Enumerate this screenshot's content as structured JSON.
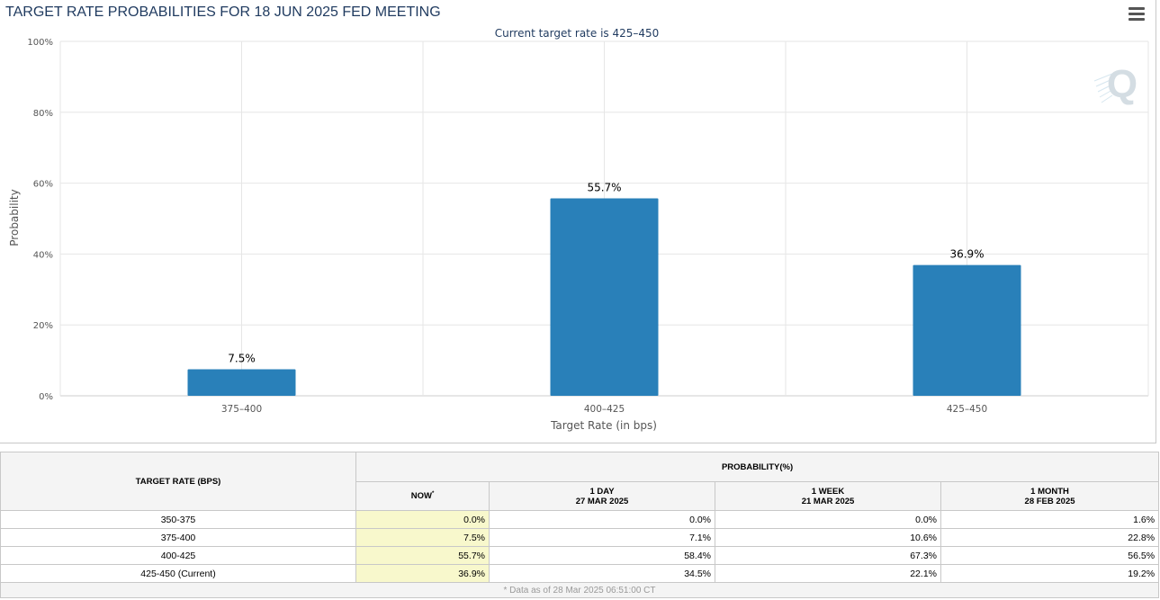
{
  "chart_data": {
    "type": "bar",
    "title": "TARGET RATE PROBABILITIES FOR 18 JUN 2025 FED MEETING",
    "subtitle": "Current target rate is 425–450",
    "xlabel": "Target Rate (in bps)",
    "ylabel": "Probability",
    "categories": [
      "375–400",
      "400–425",
      "425–450"
    ],
    "values": [
      7.5,
      55.7,
      36.9
    ],
    "data_labels": [
      "7.5%",
      "55.7%",
      "36.9%"
    ],
    "ylim": [
      0,
      100
    ],
    "yticks": [
      0,
      20,
      40,
      60,
      80,
      100
    ],
    "ytick_labels": [
      "0%",
      "20%",
      "40%",
      "60%",
      "80%",
      "100%"
    ],
    "bar_color": "#2980b9",
    "grid": true
  },
  "watermark": "Q",
  "table": {
    "rate_header": "TARGET RATE (BPS)",
    "prob_header": "PROBABILITY(%)",
    "now_header": "NOW",
    "now_mark": "*",
    "cols": [
      {
        "top": "1 DAY",
        "date": "27 MAR 2025"
      },
      {
        "top": "1 WEEK",
        "date": "21 MAR 2025"
      },
      {
        "top": "1 MONTH",
        "date": "28 FEB 2025"
      }
    ],
    "rows": [
      {
        "rate": "350-375",
        "now": "0.0%",
        "d1": "0.0%",
        "w1": "0.0%",
        "m1": "1.6%"
      },
      {
        "rate": "375-400",
        "now": "7.5%",
        "d1": "7.1%",
        "w1": "10.6%",
        "m1": "22.8%"
      },
      {
        "rate": "400-425",
        "now": "55.7%",
        "d1": "58.4%",
        "w1": "67.3%",
        "m1": "56.5%"
      },
      {
        "rate": "425-450 (Current)",
        "now": "36.9%",
        "d1": "34.5%",
        "w1": "22.1%",
        "m1": "19.2%"
      }
    ],
    "footer": "* Data as of 28 Mar 2025 06:51:00 CT"
  }
}
